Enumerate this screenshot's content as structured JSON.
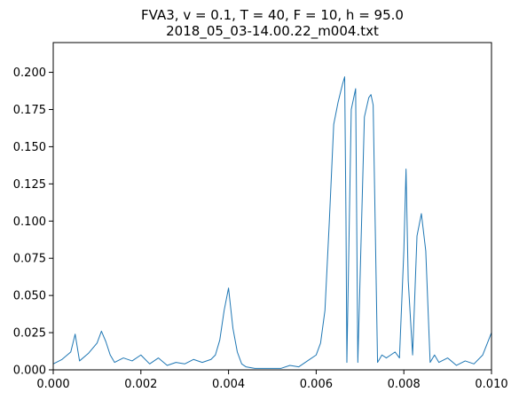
{
  "chart_data": {
    "type": "line",
    "title": "FVA3, v = 0.1, T = 40, F = 10, h = 95.0",
    "subtitle": "2018_05_03-14.00.22_m004.txt",
    "xlabel": "",
    "ylabel": "",
    "xlim": [
      0,
      0.01
    ],
    "ylim": [
      0,
      0.22
    ],
    "x_ticks": [
      "0.000",
      "0.002",
      "0.004",
      "0.006",
      "0.008",
      "0.010"
    ],
    "y_ticks": [
      "0.000",
      "0.025",
      "0.050",
      "0.075",
      "0.100",
      "0.125",
      "0.150",
      "0.175",
      "0.200"
    ],
    "grid": false,
    "series": [
      {
        "color": "#1f77b4",
        "x": [
          0,
          0.0002,
          0.0004,
          0.0005,
          0.0006,
          0.0008,
          0.001,
          0.0011,
          0.0012,
          0.0013,
          0.0014,
          0.0016,
          0.0018,
          0.002,
          0.0022,
          0.0024,
          0.0026,
          0.0028,
          0.003,
          0.0032,
          0.0034,
          0.0036,
          0.0037,
          0.0038,
          0.0039,
          0.004,
          0.0041,
          0.0042,
          0.0043,
          0.0044,
          0.0046,
          0.0048,
          0.005,
          0.0052,
          0.0054,
          0.0056,
          0.0058,
          0.006,
          0.0061,
          0.0062,
          0.0063,
          0.0064,
          0.0065,
          0.0066,
          0.00665,
          0.00668,
          0.0067,
          0.0068,
          0.0069,
          0.00695,
          0.007,
          0.0071,
          0.0072,
          0.00725,
          0.0073,
          0.0074,
          0.0075,
          0.0076,
          0.0077,
          0.0078,
          0.0079,
          0.008,
          0.00805,
          0.0081,
          0.0082,
          0.0083,
          0.0084,
          0.0085,
          0.0086,
          0.0087,
          0.0088,
          0.009,
          0.0092,
          0.0094,
          0.0096,
          0.0098,
          0.01
        ],
        "y": [
          0.004,
          0.007,
          0.012,
          0.024,
          0.006,
          0.011,
          0.018,
          0.026,
          0.019,
          0.01,
          0.005,
          0.008,
          0.006,
          0.01,
          0.004,
          0.008,
          0.003,
          0.005,
          0.004,
          0.007,
          0.005,
          0.007,
          0.01,
          0.02,
          0.04,
          0.055,
          0.028,
          0.012,
          0.004,
          0.002,
          0.001,
          0.001,
          0.001,
          0.001,
          0.003,
          0.002,
          0.006,
          0.01,
          0.018,
          0.04,
          0.1,
          0.165,
          0.18,
          0.192,
          0.197,
          0.1,
          0.005,
          0.175,
          0.189,
          0.005,
          0.06,
          0.17,
          0.183,
          0.185,
          0.178,
          0.005,
          0.01,
          0.008,
          0.01,
          0.012,
          0.008,
          0.08,
          0.135,
          0.06,
          0.01,
          0.09,
          0.105,
          0.08,
          0.005,
          0.01,
          0.005,
          0.008,
          0.003,
          0.006,
          0.004,
          0.01,
          0.025
        ]
      }
    ]
  }
}
